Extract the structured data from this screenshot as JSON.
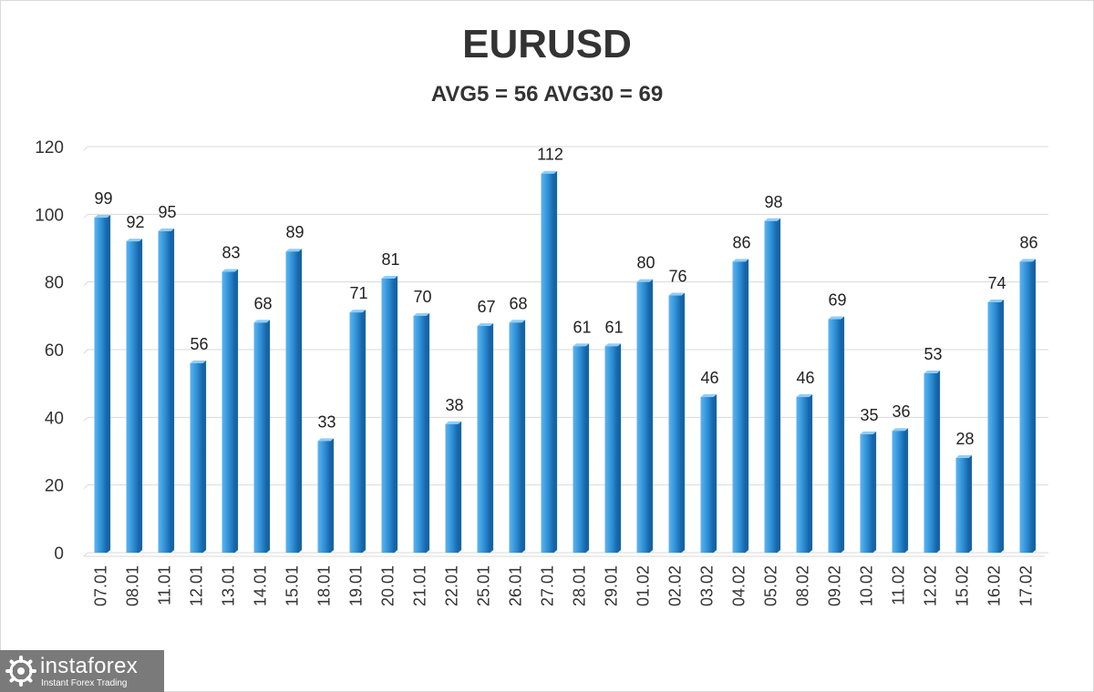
{
  "chart_data": {
    "type": "bar",
    "title": "EURUSD",
    "subtitle": "AVG5 = 56 AVG30 = 69",
    "categories": [
      "07.01",
      "08.01",
      "11.01",
      "12.01",
      "13.01",
      "14.01",
      "15.01",
      "18.01",
      "19.01",
      "20.01",
      "21.01",
      "22.01",
      "25.01",
      "26.01",
      "27.01",
      "28.01",
      "29.01",
      "01.02",
      "02.02",
      "03.02",
      "04.02",
      "05.02",
      "08.02",
      "09.02",
      "10.02",
      "11.02",
      "12.02",
      "15.02",
      "16.02",
      "17.02"
    ],
    "values": [
      99,
      92,
      95,
      56,
      83,
      68,
      89,
      33,
      71,
      81,
      70,
      38,
      67,
      68,
      112,
      61,
      61,
      80,
      76,
      46,
      86,
      98,
      46,
      69,
      35,
      36,
      53,
      28,
      74,
      86
    ],
    "ylim": [
      0,
      120
    ],
    "yticks": [
      0,
      20,
      40,
      60,
      80,
      100,
      120
    ],
    "grid": true,
    "data_labels": true,
    "xlabel": "",
    "ylabel": "",
    "bar_color": "#2e8fd6",
    "bar_color_light": "#5db4ee",
    "bar_color_dark": "#1664a6"
  },
  "logo": {
    "brand": "instaforex",
    "tagline": "Instant Forex Trading",
    "icon": "gear-logo-icon"
  }
}
